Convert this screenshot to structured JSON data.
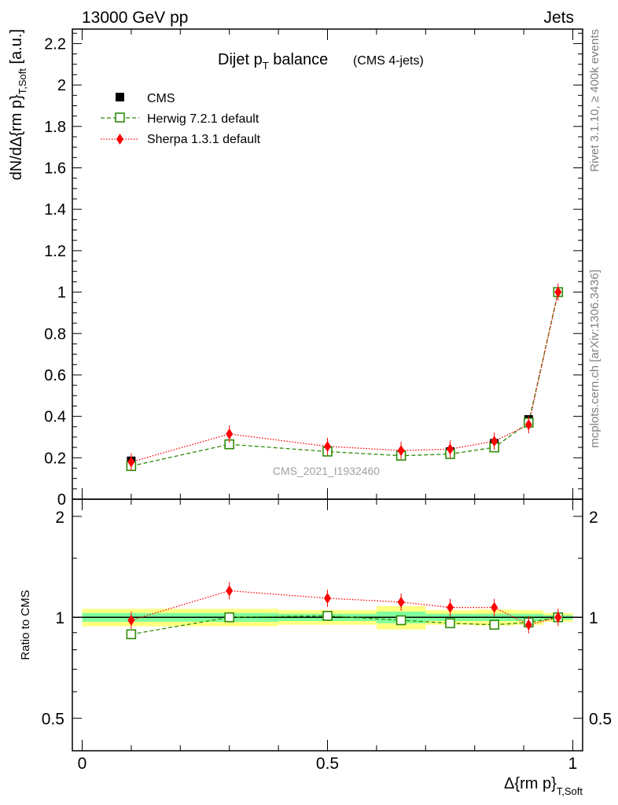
{
  "header": {
    "left": "13000 GeV pp",
    "right": "Jets"
  },
  "title": {
    "main": "Dijet p",
    "main_sub": "T",
    "main_tail": " balance",
    "small": "(CMS 4-jets)"
  },
  "side_labels": {
    "rivet": "Rivet 3.1.10, ≥ 400k events",
    "mcplots": "mcplots.cern.ch [arXiv:1306.3436]"
  },
  "watermark": "CMS_2021_I1932460",
  "ylabel_main": {
    "text": "dN/dΔ{rm p}",
    "sub": "T,Soft",
    "unit": " [a.u.]"
  },
  "ylabel_ratio": "Ratio to CMS",
  "xlabel": {
    "text": "Δ{rm p}",
    "sub": "T,Soft"
  },
  "colors": {
    "data": "#000000",
    "herwig": "#2e8b08",
    "sherpa": "#ff0000",
    "band_inner": "#80ff9c",
    "band_outer": "#ffff80"
  },
  "chart_data": [
    {
      "type": "scatter",
      "panel": "main",
      "x": [
        0.1,
        0.3,
        0.5,
        0.65,
        0.75,
        0.84,
        0.91,
        0.97
      ],
      "xlim": [
        -0.02,
        1.02
      ],
      "ylim": [
        0,
        2.27
      ],
      "yticks": [
        0,
        0.2,
        0.4,
        0.6,
        0.8,
        1,
        1.2,
        1.4,
        1.6,
        1.8,
        2,
        2.2
      ],
      "ytick_labels": [
        "0",
        "0.2",
        "0.4",
        "0.6",
        "0.8",
        "1",
        "1.2",
        "1.4",
        "1.6",
        "1.8",
        "2",
        "2.2"
      ],
      "series": [
        {
          "name": "CMS",
          "key": "data",
          "marker": "filled-square",
          "values": [
            0.185,
            0.265,
            0.235,
            0.21,
            0.23,
            0.27,
            0.385,
            1.0
          ]
        },
        {
          "name": "Herwig 7.2.1 default",
          "key": "herwig",
          "marker": "open-square",
          "line": "dashed",
          "values": [
            0.16,
            0.265,
            0.23,
            0.21,
            0.218,
            0.25,
            0.37,
            1.0
          ]
        },
        {
          "name": "Sherpa 1.3.1 default",
          "key": "sherpa",
          "marker": "diamond",
          "line": "dotted",
          "values": [
            0.18,
            0.315,
            0.255,
            0.235,
            0.242,
            0.28,
            0.36,
            1.0
          ]
        }
      ]
    },
    {
      "type": "scatter",
      "panel": "ratio",
      "x": [
        0.1,
        0.3,
        0.5,
        0.65,
        0.75,
        0.84,
        0.91,
        0.97
      ],
      "ylim": [
        0.4,
        2.25
      ],
      "yscale": "log",
      "yticks": [
        0.5,
        1,
        2
      ],
      "ytick_labels": [
        "0.5",
        "1",
        "2"
      ],
      "xticks": [
        0,
        0.5,
        1
      ],
      "xtick_labels": [
        "0",
        "0.5",
        "1"
      ],
      "bands": [
        {
          "xlo": 0.0,
          "xhi": 0.4,
          "inner": [
            0.97,
            1.03
          ],
          "outer": [
            0.94,
            1.06
          ]
        },
        {
          "xlo": 0.4,
          "xhi": 0.6,
          "inner": [
            0.975,
            1.025
          ],
          "outer": [
            0.95,
            1.05
          ]
        },
        {
          "xlo": 0.6,
          "xhi": 0.7,
          "inner": [
            0.96,
            1.04
          ],
          "outer": [
            0.92,
            1.08
          ]
        },
        {
          "xlo": 0.7,
          "xhi": 0.8,
          "inner": [
            0.975,
            1.025
          ],
          "outer": [
            0.95,
            1.05
          ]
        },
        {
          "xlo": 0.8,
          "xhi": 0.88,
          "inner": [
            0.975,
            1.025
          ],
          "outer": [
            0.945,
            1.055
          ]
        },
        {
          "xlo": 0.88,
          "xhi": 0.94,
          "inner": [
            0.975,
            1.025
          ],
          "outer": [
            0.95,
            1.05
          ]
        },
        {
          "xlo": 0.94,
          "xhi": 1.0,
          "inner": [
            0.985,
            1.015
          ],
          "outer": [
            0.97,
            1.03
          ]
        }
      ],
      "series": [
        {
          "name": "Herwig 7.2.1 default",
          "key": "herwig",
          "values": [
            0.89,
            1.0,
            1.01,
            0.98,
            0.96,
            0.95,
            0.965,
            1.0
          ]
        },
        {
          "name": "Sherpa 1.3.1 default",
          "key": "sherpa",
          "values": [
            0.98,
            1.2,
            1.14,
            1.11,
            1.07,
            1.07,
            0.95,
            1.0
          ]
        }
      ]
    }
  ]
}
